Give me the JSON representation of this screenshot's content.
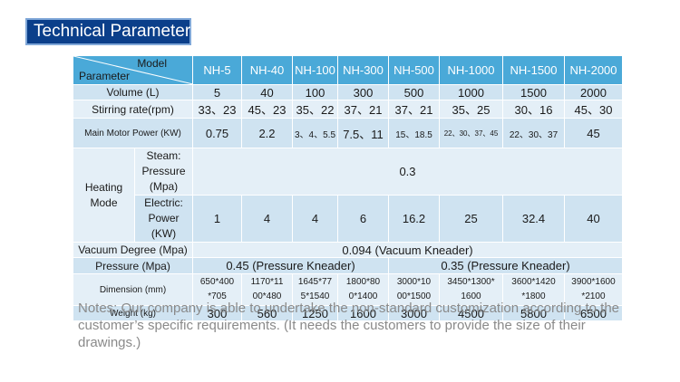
{
  "title": "Technical Parameter",
  "header": {
    "model_label": "Model",
    "parameter_label": "Parameter",
    "models": [
      "NH-5",
      "NH-40",
      "NH-100",
      "NH-300",
      "NH-500",
      "NH-1000",
      "NH-1500",
      "NH-2000"
    ]
  },
  "rows": {
    "volume": {
      "label": "Volume (L)",
      "values": [
        "5",
        "40",
        "100",
        "300",
        "500",
        "1000",
        "1500",
        "2000"
      ]
    },
    "stirring": {
      "label": "Stirring rate(rpm)",
      "values": [
        "33、23",
        "45、23",
        "35、22",
        "37、21",
        "37、21",
        "35、25",
        "30、16",
        "45、30"
      ]
    },
    "motor": {
      "label": "Main Motor Power (KW)",
      "values": [
        "0.75",
        "2.2",
        "3、4、5.5",
        "7.5、11",
        "15、18.5",
        "22、30、37、45",
        "22、30、37",
        "45"
      ]
    },
    "heating": {
      "label": "Heating Mode",
      "steam": {
        "label": "Steam: Pressure (Mpa)",
        "value": "0.3"
      },
      "electric": {
        "label": "Electric: Power (KW)",
        "values": [
          "1",
          "4",
          "4",
          "6",
          "16.2",
          "25",
          "32.4",
          "40"
        ]
      }
    },
    "vacuum": {
      "label": "Vacuum Degree (Mpa)",
      "value": "0.094 (Vacuum Kneader)"
    },
    "pressure": {
      "label": "Pressure (Mpa)",
      "value_a": "0.45 (Pressure Kneader)",
      "value_b": "0.35 (Pressure Kneader)"
    },
    "dimension": {
      "label": "Dimension (mm)",
      "values": [
        "650*400 *705",
        "1170*11 00*480",
        "1645*77 5*1540",
        "1800*80 0*1400",
        "3000*10 00*1500",
        "3450*1300* 1600",
        "3600*1420 *1800",
        "3900*1600 *2100"
      ]
    },
    "weight": {
      "label": "Weight (kg)",
      "values": [
        "300",
        "560",
        "1250",
        "1600",
        "3000",
        "4500",
        "5800",
        "6500"
      ]
    }
  },
  "notes": "Notes: Our company is able to undertake the non-standard customization according to the customer’s specific requirements.  (It needs the customers to provide the size of their drawings.)",
  "colors": {
    "title_bg": "#0b3f8a",
    "header_bg": "#4aa9d8",
    "row_dark": "#cfe3f1",
    "row_light": "#e4eff7",
    "notes_text": "#8a8a8a"
  }
}
